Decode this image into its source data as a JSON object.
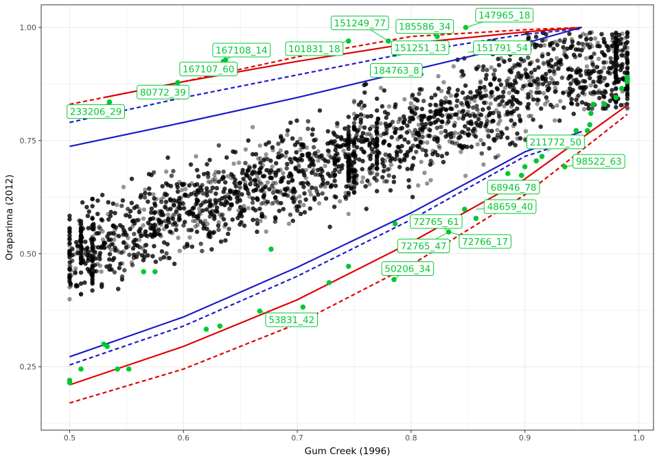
{
  "colors": {
    "background": "#ffffff",
    "grid": "#ebebeb",
    "panel_border": "#333333",
    "points": "#000000",
    "highlight": "#00c832",
    "red_line": "#e00000",
    "blue_line": "#1a1ac8"
  },
  "chart_data": {
    "type": "scatter",
    "xlabel": "Gum Creek (1996)",
    "ylabel": "Oraparinna (2012)",
    "xlim": [
      0.475,
      1.013
    ],
    "ylim": [
      0.11,
      1.05
    ],
    "x_ticks": [
      0.5,
      0.6,
      0.7,
      0.8,
      0.9,
      1.0
    ],
    "x_tick_labels": [
      "0.5",
      "0.6",
      "0.7",
      "0.8",
      "0.9",
      "1.0"
    ],
    "y_ticks": [
      0.25,
      0.5,
      0.75,
      1.0
    ],
    "y_tick_labels": [
      "0.25",
      "0.50",
      "0.75",
      "1.00"
    ],
    "grid": true,
    "legend": "none",
    "background_points": {
      "description_count": "approx 10000 semi-transparent black points",
      "x_range": [
        0.5,
        0.99
      ],
      "trend": "positive, dense band from (0.5, 0.5) to (0.99, 0.92)"
    },
    "lines": [
      {
        "style": "solid",
        "color": "red",
        "points": [
          [
            0.5,
            0.21
          ],
          [
            0.6,
            0.295
          ],
          [
            0.7,
            0.398
          ],
          [
            0.8,
            0.525
          ],
          [
            0.9,
            0.665
          ],
          [
            0.99,
            0.828
          ]
        ]
      },
      {
        "style": "dashed",
        "color": "red",
        "points": [
          [
            0.5,
            0.17
          ],
          [
            0.6,
            0.245
          ],
          [
            0.7,
            0.345
          ],
          [
            0.8,
            0.475
          ],
          [
            0.9,
            0.63
          ],
          [
            0.99,
            0.808
          ]
        ]
      },
      {
        "style": "solid",
        "color": "blue",
        "points": [
          [
            0.5,
            0.272
          ],
          [
            0.6,
            0.36
          ],
          [
            0.7,
            0.47
          ],
          [
            0.8,
            0.59
          ],
          [
            0.9,
            0.725
          ],
          [
            0.95,
            0.77
          ]
        ]
      },
      {
        "style": "dashed",
        "color": "blue",
        "points": [
          [
            0.5,
            0.254
          ],
          [
            0.6,
            0.34
          ],
          [
            0.7,
            0.45
          ],
          [
            0.8,
            0.575
          ],
          [
            0.9,
            0.715
          ],
          [
            0.95,
            0.755
          ]
        ]
      },
      {
        "style": "solid",
        "color": "red",
        "points": [
          [
            0.53,
            0.845
          ],
          [
            0.6,
            0.88
          ],
          [
            0.7,
            0.925
          ],
          [
            0.8,
            0.965
          ],
          [
            0.9,
            0.99
          ],
          [
            0.95,
            1.0
          ]
        ]
      },
      {
        "style": "dashed",
        "color": "red",
        "points": [
          [
            0.5,
            0.83
          ],
          [
            0.6,
            0.88
          ],
          [
            0.7,
            0.935
          ],
          [
            0.8,
            0.98
          ],
          [
            0.9,
            0.995
          ],
          [
            0.95,
            1.0
          ]
        ]
      },
      {
        "style": "solid",
        "color": "blue",
        "points": [
          [
            0.5,
            0.737
          ],
          [
            0.6,
            0.79
          ],
          [
            0.7,
            0.845
          ],
          [
            0.8,
            0.905
          ],
          [
            0.9,
            0.965
          ],
          [
            0.95,
            1.0
          ]
        ]
      },
      {
        "style": "dashed",
        "color": "blue",
        "points": [
          [
            0.5,
            0.79
          ],
          [
            0.6,
            0.845
          ],
          [
            0.7,
            0.895
          ],
          [
            0.8,
            0.945
          ],
          [
            0.9,
            0.985
          ],
          [
            0.95,
            0.997
          ]
        ]
      }
    ],
    "highlighted_points": [
      [
        0.5,
        0.22
      ],
      [
        0.5,
        0.215
      ],
      [
        0.51,
        0.245
      ],
      [
        0.53,
        0.3
      ],
      [
        0.533,
        0.295
      ],
      [
        0.542,
        0.245
      ],
      [
        0.552,
        0.245
      ],
      [
        0.535,
        0.835
      ],
      [
        0.595,
        0.878
      ],
      [
        0.635,
        0.925
      ],
      [
        0.637,
        0.928
      ],
      [
        0.565,
        0.46
      ],
      [
        0.575,
        0.46
      ],
      [
        0.62,
        0.333
      ],
      [
        0.632,
        0.34
      ],
      [
        0.667,
        0.373
      ],
      [
        0.677,
        0.51
      ],
      [
        0.705,
        0.382
      ],
      [
        0.728,
        0.436
      ],
      [
        0.745,
        0.472
      ],
      [
        0.745,
        0.97
      ],
      [
        0.78,
        0.97
      ],
      [
        0.785,
        0.443
      ],
      [
        0.786,
        0.566
      ],
      [
        0.823,
        0.98
      ],
      [
        0.833,
        0.548
      ],
      [
        0.847,
        0.598
      ],
      [
        0.848,
        1.0
      ],
      [
        0.857,
        0.578
      ],
      [
        0.87,
        0.646
      ],
      [
        0.885,
        0.677
      ],
      [
        0.897,
        0.673
      ],
      [
        0.9,
        0.692
      ],
      [
        0.91,
        0.705
      ],
      [
        0.915,
        0.715
      ],
      [
        0.935,
        0.692
      ],
      [
        0.945,
        0.772
      ],
      [
        0.955,
        0.772
      ],
      [
        0.957,
        0.785
      ],
      [
        0.958,
        0.81
      ],
      [
        0.96,
        0.83
      ],
      [
        0.97,
        0.83
      ],
      [
        0.98,
        0.845
      ],
      [
        0.985,
        0.865
      ],
      [
        0.99,
        0.88
      ],
      [
        0.99,
        0.885
      ],
      [
        0.99,
        0.89
      ]
    ],
    "annotations": [
      {
        "label": "147965_18",
        "x": 0.848,
        "y": 1.0,
        "lx": 0.882,
        "ly": 1.027
      },
      {
        "label": "151249_77",
        "x": 0.78,
        "y": 0.97,
        "lx": 0.755,
        "ly": 1.01
      },
      {
        "label": "185586_34",
        "x": 0.823,
        "y": 0.98,
        "lx": 0.812,
        "ly": 1.002
      },
      {
        "label": "167108_14",
        "x": 0.637,
        "y": 0.928,
        "lx": 0.651,
        "ly": 0.95
      },
      {
        "label": "101831_18",
        "x": 0.745,
        "y": 0.97,
        "lx": 0.715,
        "ly": 0.953
      },
      {
        "label": "151251_13",
        "x": 0.785,
        "y": 0.935,
        "lx": 0.808,
        "ly": 0.955
      },
      {
        "label": "151791_54",
        "x": 0.85,
        "y": 0.945,
        "lx": 0.88,
        "ly": 0.955
      },
      {
        "label": "167107_60",
        "x": 0.635,
        "y": 0.925,
        "lx": 0.622,
        "ly": 0.908
      },
      {
        "label": "184763_8",
        "x": 0.77,
        "y": 0.92,
        "lx": 0.787,
        "ly": 0.905
      },
      {
        "label": "80772_39",
        "x": 0.595,
        "y": 0.878,
        "lx": 0.582,
        "ly": 0.857
      },
      {
        "label": "233206_29",
        "x": 0.535,
        "y": 0.835,
        "lx": 0.523,
        "ly": 0.814
      },
      {
        "label": "211772_50",
        "x": 0.92,
        "y": 0.725,
        "lx": 0.927,
        "ly": 0.747
      },
      {
        "label": "98522_63",
        "x": 0.935,
        "y": 0.692,
        "lx": 0.965,
        "ly": 0.704
      },
      {
        "label": "68946_78",
        "x": 0.87,
        "y": 0.646,
        "lx": 0.89,
        "ly": 0.647
      },
      {
        "label": "48659_40",
        "x": 0.857,
        "y": 0.598,
        "lx": 0.887,
        "ly": 0.604
      },
      {
        "label": "72765_61",
        "x": 0.833,
        "y": 0.548,
        "lx": 0.822,
        "ly": 0.571
      },
      {
        "label": "72765_47",
        "x": 0.833,
        "y": 0.548,
        "lx": 0.811,
        "ly": 0.517
      },
      {
        "label": "72766_17",
        "x": 0.833,
        "y": 0.548,
        "lx": 0.865,
        "ly": 0.527
      },
      {
        "label": "50206_34",
        "x": 0.785,
        "y": 0.443,
        "lx": 0.797,
        "ly": 0.467
      },
      {
        "label": "53831_42",
        "x": 0.667,
        "y": 0.373,
        "lx": 0.695,
        "ly": 0.354
      }
    ]
  }
}
